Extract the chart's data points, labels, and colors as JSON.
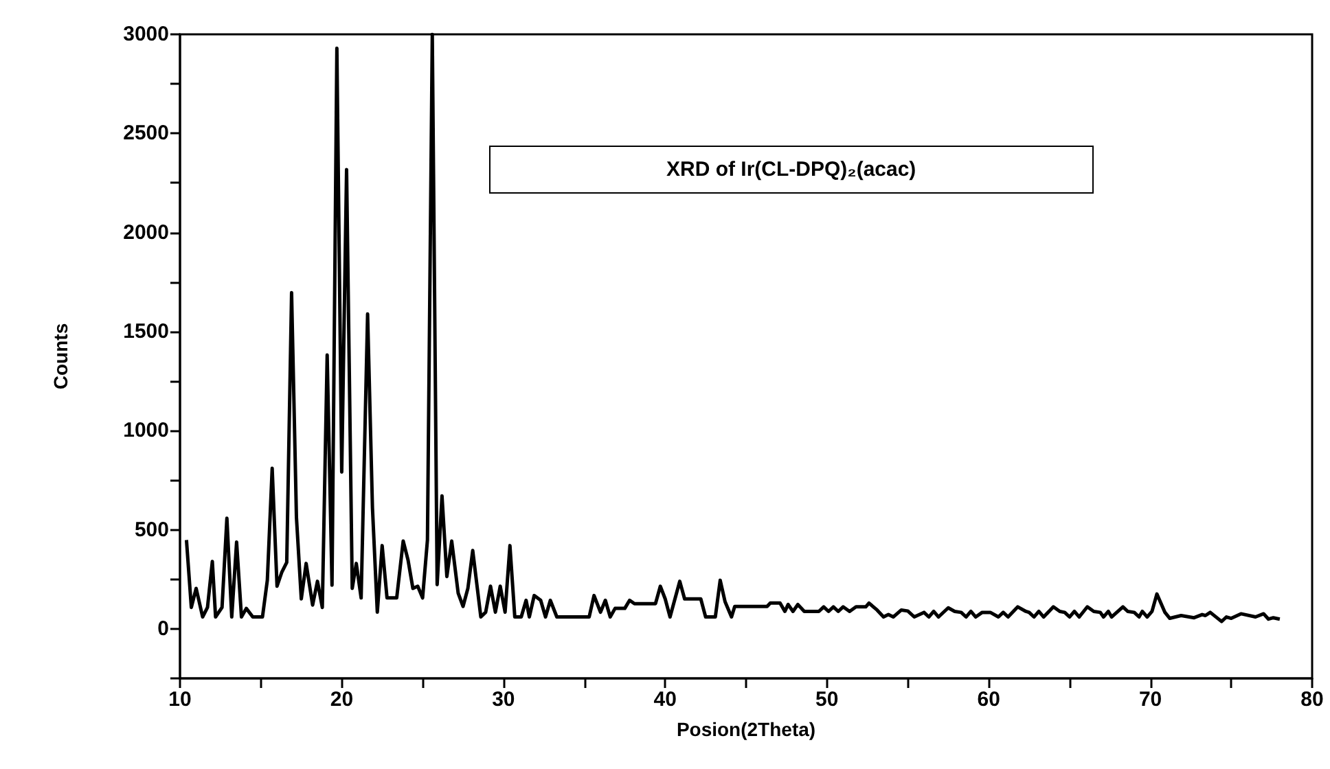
{
  "chart_data": {
    "type": "line",
    "title": "XRD of Ir(CL-DPQ)₂(acac)",
    "xlabel": "Posion(2Theta)",
    "ylabel": "Counts",
    "x": [
      10.4,
      10.7,
      11.0,
      11.4,
      11.7,
      12.0,
      12.2,
      12.6,
      12.9,
      13.2,
      13.5,
      13.8,
      14.1,
      14.5,
      15.1,
      15.4,
      15.7,
      16.0,
      16.3,
      16.6,
      16.9,
      17.2,
      17.5,
      17.8,
      18.2,
      18.5,
      18.8,
      19.1,
      19.4,
      19.7,
      20.0,
      20.3,
      20.65,
      20.9,
      21.2,
      21.6,
      21.9,
      22.2,
      22.5,
      22.8,
      23.4,
      23.8,
      24.1,
      24.4,
      24.7,
      25.0,
      25.3,
      25.6,
      25.9,
      26.2,
      26.5,
      26.8,
      27.2,
      27.5,
      27.8,
      28.1,
      28.6,
      28.9,
      29.2,
      29.5,
      29.8,
      30.1,
      30.4,
      30.7,
      31.1,
      31.4,
      31.6,
      31.9,
      32.3,
      32.6,
      32.9,
      33.3,
      35.3,
      35.6,
      36.0,
      36.3,
      36.6,
      36.9,
      37.5,
      37.8,
      38.1,
      39.4,
      39.7,
      40.0,
      40.3,
      40.9,
      41.2,
      42.2,
      42.5,
      43.1,
      43.4,
      43.7,
      44.1,
      44.3,
      46.3,
      46.5,
      47.1,
      47.4,
      47.6,
      47.9,
      48.2,
      48.6,
      49.5,
      49.8,
      50.1,
      50.4,
      50.7,
      51.0,
      51.4,
      51.8,
      52.4,
      52.6,
      53.1,
      53.5,
      53.8,
      54.1,
      54.6,
      55.0,
      55.4,
      56.0,
      56.3,
      56.6,
      56.9,
      57.5,
      57.9,
      58.3,
      58.6,
      58.9,
      59.2,
      59.6,
      60.1,
      60.6,
      60.9,
      61.2,
      61.8,
      62.3,
      62.5,
      62.8,
      63.1,
      63.4,
      64.0,
      64.4,
      64.7,
      65.0,
      65.3,
      65.6,
      66.1,
      66.5,
      66.9,
      67.1,
      67.4,
      67.6,
      68.3,
      68.6,
      69.0,
      69.3,
      69.5,
      69.8,
      70.1,
      70.4,
      70.9,
      71.2,
      71.9,
      72.7,
      73.2,
      73.4,
      73.7,
      74.4,
      74.7,
      75.0,
      75.6,
      76.5,
      77.0,
      77.3,
      77.6,
      78.0
    ],
    "series": [
      {
        "color": "#000000",
        "values": [
          448,
          108,
          204,
          60,
          108,
          340,
          60,
          108,
          558,
          60,
          438,
          60,
          103,
          60,
          60,
          245,
          810,
          215,
          287,
          335,
          1696,
          563,
          151,
          330,
          120,
          240,
          108,
          1382,
          220,
          2930,
          791,
          2317,
          204,
          330,
          156,
          1589,
          611,
          84,
          420,
          156,
          156,
          443,
          347,
          204,
          215,
          156,
          448,
          3000,
          223,
          671,
          264,
          443,
          180,
          113,
          204,
          395,
          60,
          84,
          215,
          84,
          215,
          84,
          420,
          60,
          60,
          144,
          60,
          168,
          144,
          60,
          144,
          60,
          60,
          168,
          84,
          144,
          60,
          103,
          103,
          144,
          127,
          127,
          215,
          151,
          60,
          240,
          151,
          151,
          60,
          60,
          245,
          137,
          60,
          113,
          113,
          130,
          130,
          88,
          123,
          88,
          123,
          88,
          88,
          111,
          88,
          111,
          88,
          111,
          88,
          111,
          111,
          130,
          95,
          60,
          72,
          60,
          95,
          90,
          60,
          83,
          60,
          88,
          60,
          106,
          88,
          83,
          60,
          88,
          60,
          83,
          83,
          60,
          83,
          60,
          111,
          88,
          83,
          60,
          88,
          60,
          111,
          88,
          83,
          60,
          88,
          60,
          111,
          88,
          83,
          60,
          88,
          60,
          111,
          88,
          83,
          60,
          88,
          60,
          88,
          176,
          83,
          53,
          67,
          56,
          72,
          67,
          83,
          37,
          60,
          53,
          76,
          60,
          76,
          49,
          56,
          49
        ]
      }
    ],
    "xlim": [
      10,
      80
    ],
    "xticks": [
      10,
      {
        "value": 15,
        "label": null
      },
      20,
      {
        "value": 25,
        "label": null
      },
      30,
      {
        "value": 35,
        "label": null
      },
      40,
      {
        "value": 45,
        "label": null
      },
      50,
      {
        "value": 55,
        "label": null
      },
      60,
      {
        "value": 65,
        "label": null
      },
      70,
      {
        "value": 75,
        "label": null
      },
      80
    ],
    "ylim": [
      -250,
      3000
    ],
    "yticks": [
      {
        "value": -250,
        "label": null
      },
      0,
      {
        "value": 250,
        "label": null
      },
      500,
      {
        "value": 750,
        "label": null
      },
      1000,
      {
        "value": 1250,
        "label": null
      },
      1500,
      {
        "value": 1750,
        "label": null
      },
      2000,
      {
        "value": 2250,
        "label": null
      },
      2500,
      {
        "value": 2750,
        "label": null
      },
      3000
    ],
    "grid": false,
    "marker": "none",
    "line_style": "solid"
  }
}
